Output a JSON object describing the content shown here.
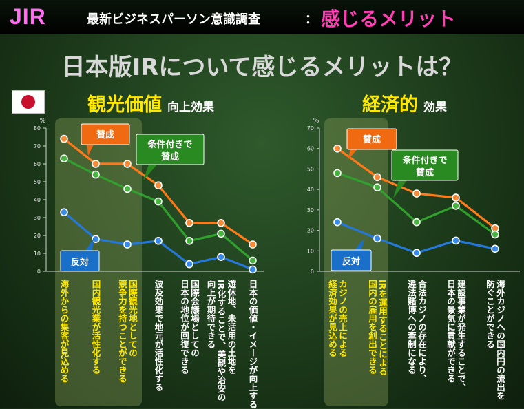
{
  "header": {
    "brand": "JIR",
    "label": "最新ビジネスパーソン意識調査",
    "colon": "：",
    "accent": "感じるメリット"
  },
  "main_title": "日本版IRについて感じるメリットは？",
  "colors": {
    "approve": "#ff7a1a",
    "conditional": "#31a02e",
    "oppose": "#2678d8",
    "highlight_text": "#ffe800",
    "brand": "#ff6ef0",
    "accent": "#ff3fb4"
  },
  "chart_data": [
    {
      "type": "line",
      "title_main": "観光価値",
      "title_sub": "向上効果",
      "unit": "%",
      "ylim": [
        0,
        80
      ],
      "yticks": [
        0,
        10,
        20,
        30,
        40,
        50,
        60,
        70,
        80
      ],
      "categories": [
        "海外からの集客が見込める",
        "国内観光業が活性化する",
        "国際観光地としての\n競争力を持つことができる",
        "波及効果で地元が活性化する",
        "国際会議場としての\n日本の地位が回復できる",
        "遊休地、未活用の土地を\nIR化することで、美観や治安の\n向上が期待できる",
        "日本の価値・イメージが向上する"
      ],
      "highlight_count": 3,
      "series": [
        {
          "name": "賛成",
          "values": [
            74,
            60,
            60,
            48,
            27,
            27,
            15
          ]
        },
        {
          "name": "条件付きで\n賛成",
          "values": [
            63,
            54,
            46,
            39,
            17,
            21,
            6
          ]
        },
        {
          "name": "反対",
          "values": [
            33,
            18,
            15,
            17,
            4,
            8,
            1
          ]
        }
      ]
    },
    {
      "type": "line",
      "title_main": "経済的",
      "title_sub": "効果",
      "unit": "%",
      "ylim": [
        0,
        70
      ],
      "yticks": [
        0,
        10,
        20,
        30,
        40,
        50,
        60,
        70
      ],
      "categories": [
        "カジノの売上による\n経済効果が見込める",
        "IRを運用することによる\n国内の雇用を創出できる",
        "合法カジノの存在により、\n違法賭博への牽制になる",
        "建設事業が発生することで、\n日本の景気に貢献ができる",
        "海外カジノへの国内円の流出を\n防ぐことができる"
      ],
      "highlight_count": 2,
      "series": [
        {
          "name": "賛成",
          "values": [
            60,
            46,
            38,
            36,
            21
          ]
        },
        {
          "name": "条件付きで\n賛成",
          "values": [
            48,
            41,
            24,
            32,
            18
          ]
        },
        {
          "name": "反対",
          "values": [
            24,
            16,
            9,
            15,
            11
          ]
        }
      ]
    }
  ]
}
